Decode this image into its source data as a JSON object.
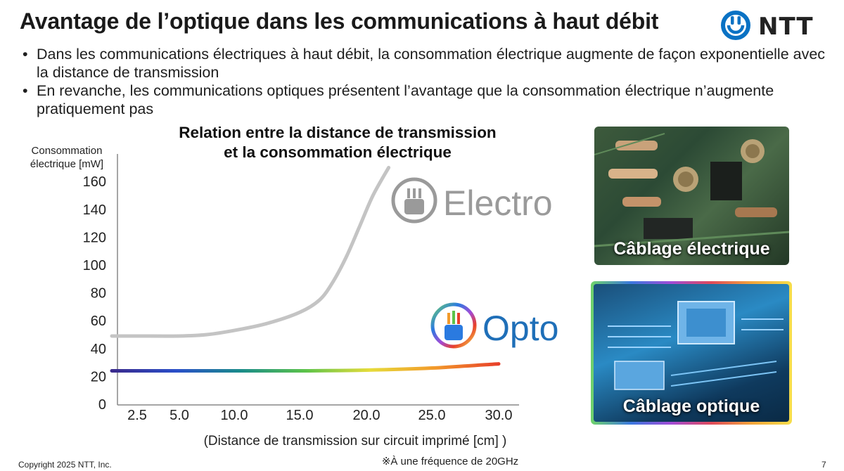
{
  "header": {
    "title": "Avantage de l’optique dans les communications à haut débit",
    "logo_text": "NTT"
  },
  "bullets": [
    "Dans les communications électriques à haut débit, la consommation électrique augmente de façon exponentielle avec la distance de transmission",
    "En revanche, les communications optiques présentent l’avantage que la consommation électrique n’augmente pratiquement pas"
  ],
  "chart_data": {
    "type": "line",
    "title_lines": [
      "Relation entre la distance de transmission",
      "et la consommation électrique"
    ],
    "ylabel_lines": [
      "Consommation",
      "électrique [mW]"
    ],
    "xlabel": "(Distance de transmission sur circuit imprimé [cm] )",
    "note": "※À une fréquence de 20GHz",
    "x_ticks": [
      2.5,
      5.0,
      10.0,
      15.0,
      20.0,
      25.0,
      30.0
    ],
    "x_tick_labels": [
      "2.5",
      "5.0",
      "10.0",
      "15.0",
      "20.0",
      "25.0",
      "30.0"
    ],
    "y_ticks": [
      0,
      20,
      40,
      60,
      80,
      100,
      120,
      140,
      160
    ],
    "ylim": [
      0,
      180
    ],
    "series": [
      {
        "name": "Electro",
        "color": "#c4c4c4",
        "points": [
          [
            1,
            49
          ],
          [
            2.5,
            49
          ],
          [
            5,
            49
          ],
          [
            7.5,
            50
          ],
          [
            10,
            53
          ],
          [
            12.5,
            58
          ],
          [
            15,
            66
          ],
          [
            16.5,
            75
          ],
          [
            17.5,
            88
          ],
          [
            18.5,
            106
          ],
          [
            19.5,
            128
          ],
          [
            20.5,
            150
          ],
          [
            21.7,
            170
          ]
        ]
      },
      {
        "name": "Opto",
        "colors": [
          "#3a2a8c",
          "#2a4fc9",
          "#1a8c8a",
          "#5cc34a",
          "#e6dc3a",
          "#f29a2a",
          "#e8402a"
        ],
        "points": [
          [
            1,
            24
          ],
          [
            5,
            24
          ],
          [
            10,
            24
          ],
          [
            15,
            24
          ],
          [
            20,
            24.5
          ],
          [
            25,
            26
          ],
          [
            30,
            29
          ]
        ]
      }
    ]
  },
  "photos": {
    "electric_caption": "Câblage électrique",
    "optical_caption": "Câblage optique"
  },
  "footer": {
    "copyright": "Copyright 2025 NTT, Inc.",
    "page_number": "7"
  }
}
